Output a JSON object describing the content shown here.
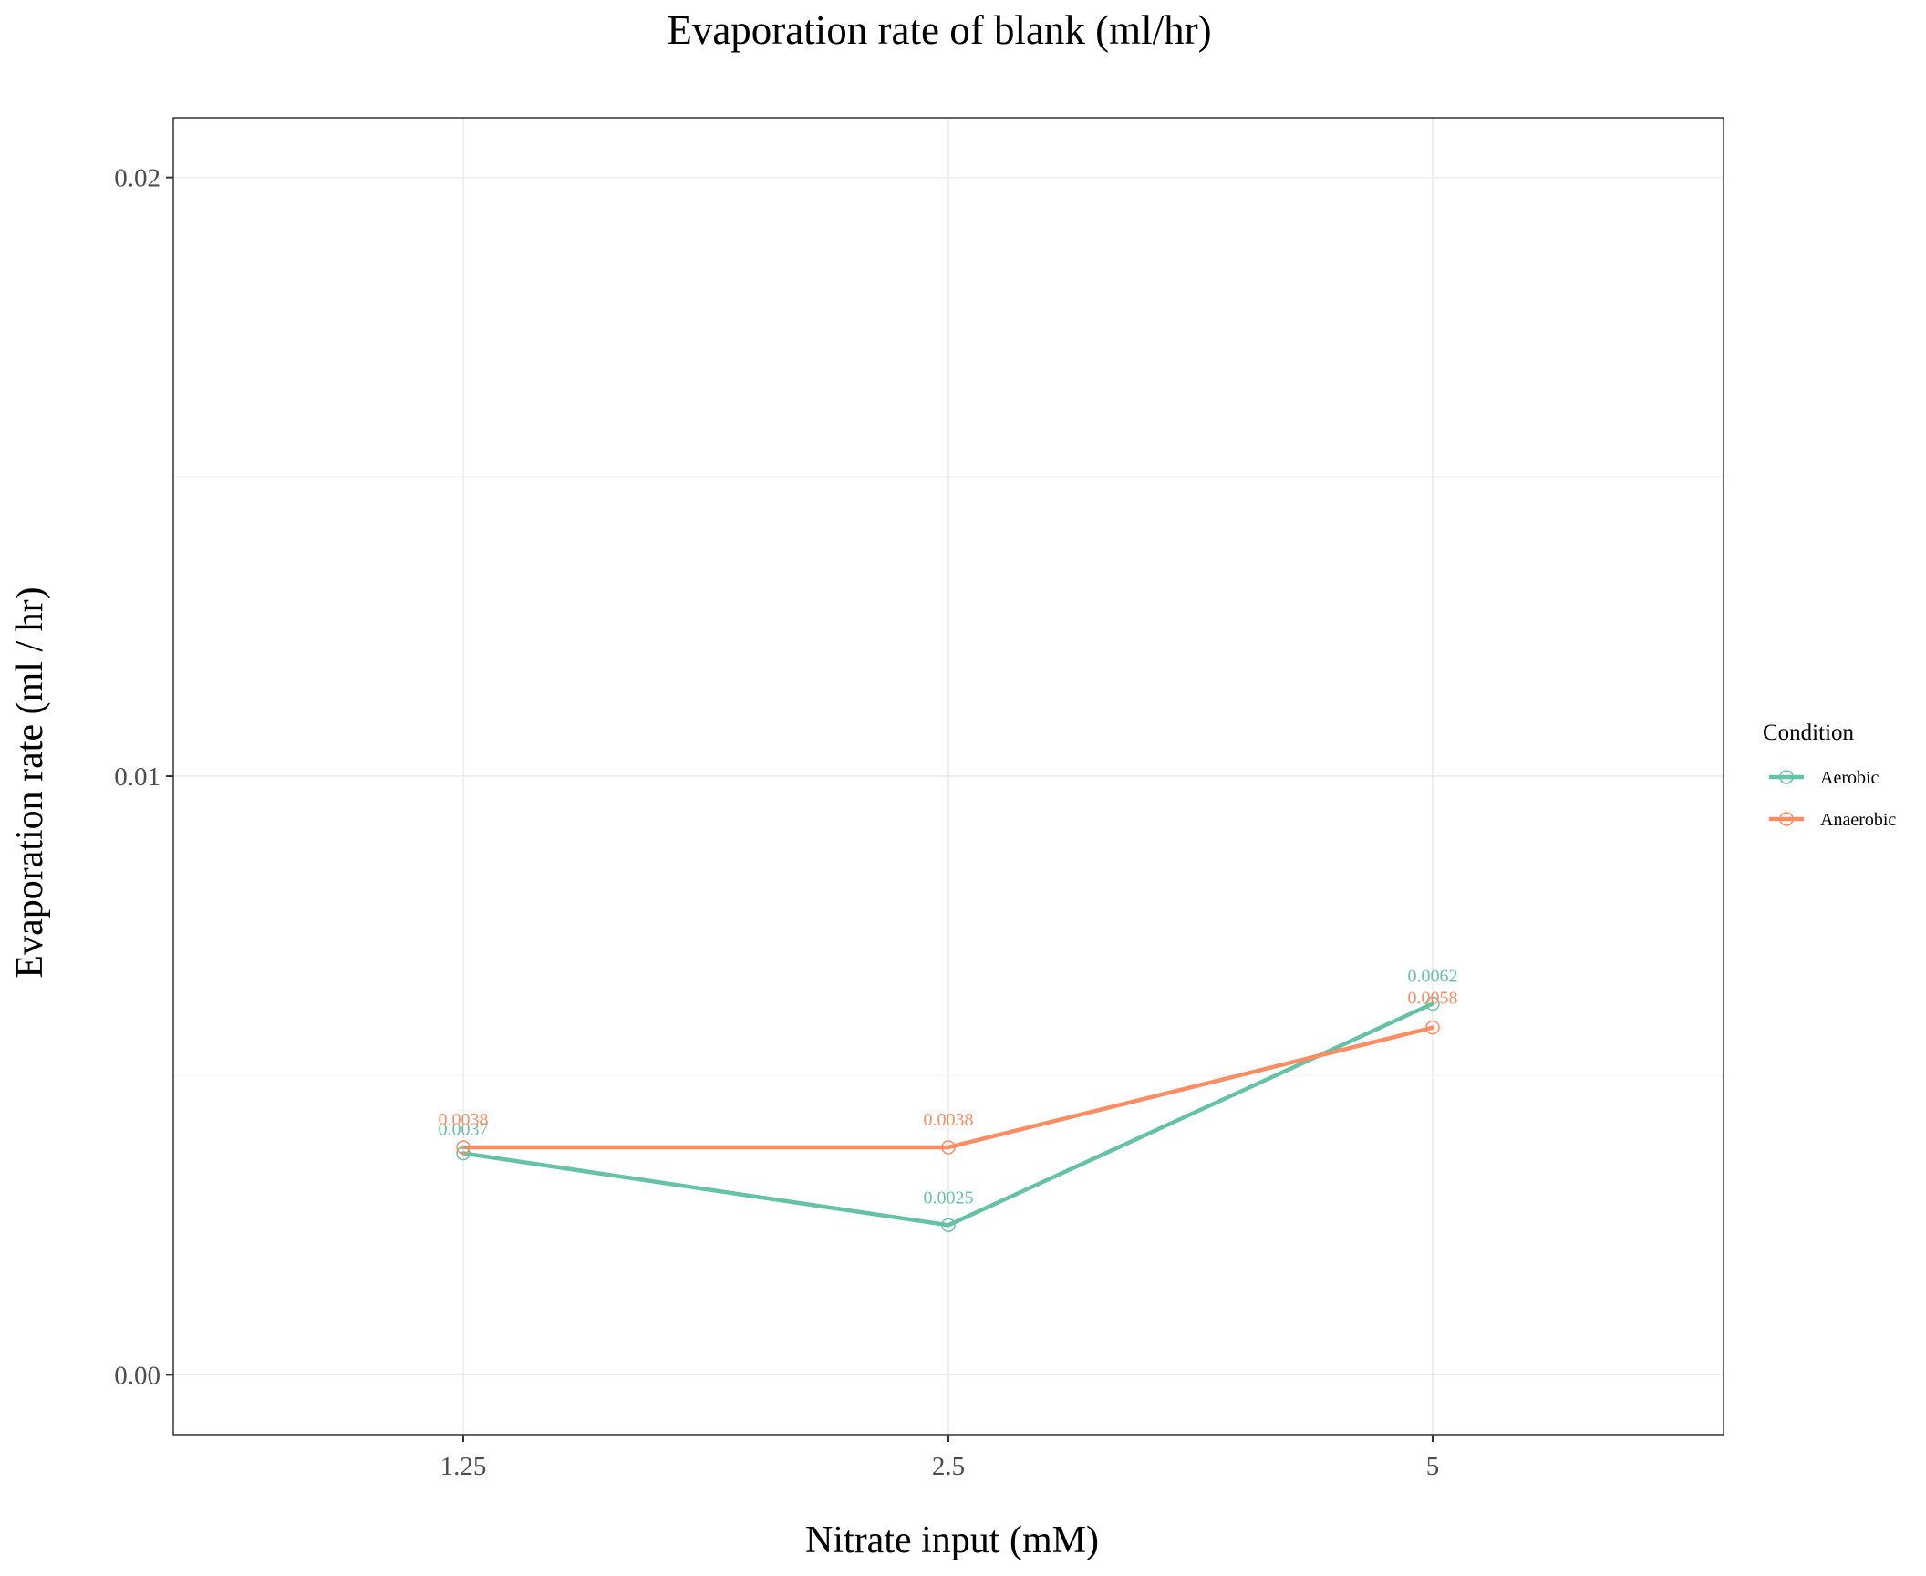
{
  "chart_data": {
    "type": "line",
    "title": "Evaporation rate of blank (ml/hr)",
    "xlabel": "Nitrate input (mM)",
    "ylabel": "Evaporation rate (ml / hr)",
    "categories": [
      "1.25",
      "2.5",
      "5"
    ],
    "yticks": [
      "0.00",
      "0.01",
      "0.02"
    ],
    "ylim": [
      -0.001,
      0.021
    ],
    "grid": true,
    "legend": {
      "title": "Condition",
      "position": "right"
    },
    "series": [
      {
        "name": "Aerobic",
        "color": "#66c2a5",
        "values": [
          0.0037,
          0.0025,
          0.0062
        ],
        "labels": [
          "0.0037",
          "0.0025",
          "0.0062"
        ]
      },
      {
        "name": "Anaerobic",
        "color": "#fc8d62",
        "values": [
          0.0038,
          0.0038,
          0.0058
        ],
        "labels": [
          "0.0038",
          "0.0038",
          "0.0058"
        ]
      }
    ]
  }
}
